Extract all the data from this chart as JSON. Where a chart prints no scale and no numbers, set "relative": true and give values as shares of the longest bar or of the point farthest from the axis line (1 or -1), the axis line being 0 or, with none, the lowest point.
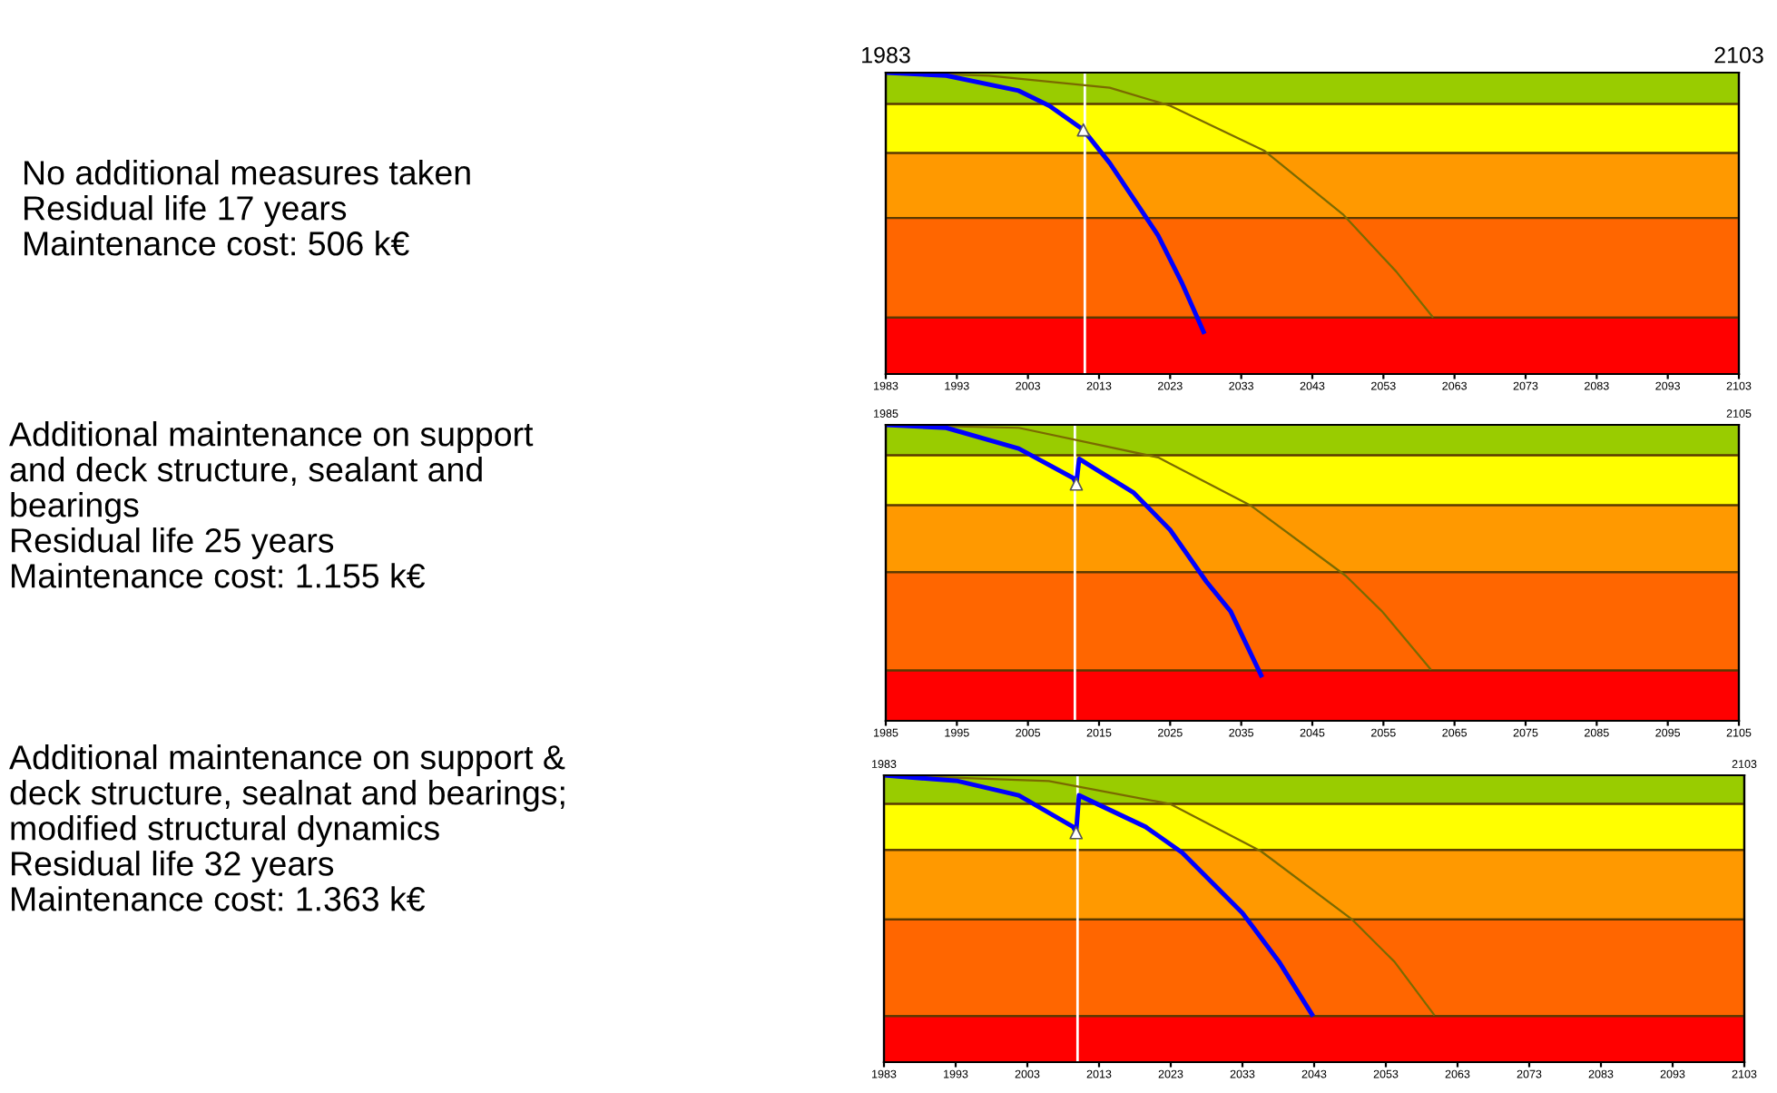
{
  "chart_data": [
    {
      "type": "line",
      "relative": true,
      "annotations": [
        "No additional measures taken\nResidual life 17 years\nMaintenance cost: 506 k€"
      ],
      "xlim": [
        1983,
        2103
      ],
      "xticks": [
        1983,
        1993,
        2003,
        2013,
        2023,
        2033,
        2043,
        2053,
        2063,
        2073,
        2083,
        2093,
        2103
      ],
      "x2lim": [
        1983,
        2103
      ],
      "x2ticks": [
        1983,
        2103
      ],
      "tick_labels": "x",
      "grid": false,
      "legend": false,
      "bands": [
        {
          "axis": "y",
          "from": 0.896,
          "to": 1,
          "color": "#99cc00"
        },
        {
          "axis": "y",
          "from": 0.733,
          "to": 0.896,
          "color": "#ffff00"
        },
        {
          "axis": "y",
          "from": 0.518,
          "to": 0.733,
          "color": "#ff9900"
        },
        {
          "axis": "y",
          "from": 0.187,
          "to": 0.518,
          "color": "#ff6600"
        },
        {
          "axis": "y",
          "from": 0,
          "to": 0.187,
          "color": "#ff0000"
        }
      ],
      "ref_lines": [
        {
          "axis": "x",
          "value": 2011,
          "color": "#ffffff"
        }
      ],
      "series": [
        {
          "color": "#7a6a00",
          "x": [
            1983,
            1997.5,
            2014.5,
            2023,
            2036.3,
            2047.3,
            2054.8,
            2059.9
          ],
          "values": [
            1.0,
            0.99,
            0.95,
            0.89,
            0.74,
            0.53,
            0.34,
            0.19
          ]
        },
        {
          "color": "#0000ff",
          "x": [
            1983,
            1991.5,
            2001.7,
            2006,
            2010.8,
            2014.5,
            2017.9,
            2021.3,
            2024.7,
            2027.7
          ],
          "values": [
            1.0,
            0.99,
            0.94,
            0.89,
            0.81,
            0.7,
            0.58,
            0.46,
            0.3,
            0.14
          ]
        },
        {
          "type": "scatter",
          "marker": "triangle",
          "color": "#ffffff",
          "x": [
            2010.8
          ],
          "values": [
            0.81
          ]
        }
      ]
    },
    {
      "type": "line",
      "relative": true,
      "annotations": [
        "Additional maintenance on support\nand deck structure, sealant and\nbearings\nResidual life 25 years\nMaintenance cost: 1.155 k€"
      ],
      "xlim": [
        1985,
        2105
      ],
      "xticks": [
        1985,
        1995,
        2005,
        2015,
        2025,
        2035,
        2045,
        2055,
        2065,
        2075,
        2085,
        2095,
        2105
      ],
      "x2lim": [
        1985,
        2105
      ],
      "x2ticks": [
        1985,
        2105
      ],
      "tick_labels": "x",
      "grid": false,
      "legend": false,
      "bands": [
        {
          "axis": "y",
          "from": 0.897,
          "to": 1,
          "color": "#99cc00"
        },
        {
          "axis": "y",
          "from": 0.728,
          "to": 0.897,
          "color": "#ffff00"
        },
        {
          "axis": "y",
          "from": 0.502,
          "to": 0.728,
          "color": "#ff9900"
        },
        {
          "axis": "y",
          "from": 0.17,
          "to": 0.502,
          "color": "#ff6600"
        },
        {
          "axis": "y",
          "from": 0,
          "to": 0.17,
          "color": "#ff0000"
        }
      ],
      "ref_lines": [
        {
          "axis": "x",
          "value": 2011.6,
          "color": "#ffffff"
        }
      ],
      "series": [
        {
          "color": "#7a6a00",
          "x": [
            1985,
            2003.7,
            2023.3,
            2036.3,
            2049.7,
            2054.8,
            2061.6
          ],
          "values": [
            1.0,
            0.99,
            0.89,
            0.728,
            0.49,
            0.37,
            0.175
          ]
        },
        {
          "color": "#0000ff",
          "x": [
            1985,
            1993.5,
            2003.7,
            2011.4,
            2011.8,
            2012.2,
            2019.9,
            2025,
            2030.1,
            2033.5,
            2037.8
          ],
          "values": [
            1.0,
            0.99,
            0.92,
            0.82,
            0.8,
            0.885,
            0.77,
            0.645,
            0.47,
            0.37,
            0.154
          ]
        },
        {
          "type": "scatter",
          "marker": "triangle",
          "color": "#ffffff",
          "x": [
            2011.8
          ],
          "values": [
            0.8
          ]
        }
      ]
    },
    {
      "type": "line",
      "relative": true,
      "annotations": [
        "Additional maintenance on support &\ndeck structure, sealnat and bearings;\nmodified structural dynamics\nResidual life 32 years\nMaintenance cost: 1.363 k€"
      ],
      "xlim": [
        1983,
        2103
      ],
      "xticks": [
        1983,
        1993,
        2003,
        2013,
        2023,
        2033,
        2043,
        2053,
        2063,
        2073,
        2083,
        2093,
        2103
      ],
      "x2lim": [
        1983,
        2103
      ],
      "x2ticks": [
        1983,
        2103
      ],
      "tick_labels": "x",
      "grid": false,
      "legend": false,
      "bands": [
        {
          "axis": "y",
          "from": 0.9,
          "to": 1,
          "color": "#99cc00"
        },
        {
          "axis": "y",
          "from": 0.739,
          "to": 0.9,
          "color": "#ffff00"
        },
        {
          "axis": "y",
          "from": 0.497,
          "to": 0.739,
          "color": "#ff9900"
        },
        {
          "axis": "y",
          "from": 0.16,
          "to": 0.497,
          "color": "#ff6600"
        },
        {
          "axis": "y",
          "from": 0,
          "to": 0.16,
          "color": "#ff0000"
        }
      ],
      "ref_lines": [
        {
          "axis": "x",
          "value": 2010,
          "color": "#ffffff"
        }
      ],
      "series": [
        {
          "color": "#7a6a00",
          "x": [
            1983,
            2006,
            2022.9,
            2035.6,
            2048.3,
            2054.2,
            2059.7
          ],
          "values": [
            1.0,
            0.98,
            0.9,
            0.735,
            0.497,
            0.35,
            0.166
          ]
        },
        {
          "color": "#0000ff",
          "x": [
            1983,
            1993.3,
            2001.8,
            2009.4,
            2009.8,
            2010.2,
            2019.5,
            2024.6,
            2033,
            2038.1,
            2042.7
          ],
          "values": [
            1.0,
            0.98,
            0.93,
            0.82,
            0.8,
            0.93,
            0.82,
            0.73,
            0.52,
            0.35,
            0.166
          ]
        },
        {
          "type": "scatter",
          "marker": "triangle",
          "color": "#ffffff",
          "x": [
            2009.8
          ],
          "values": [
            0.8
          ]
        }
      ]
    }
  ]
}
